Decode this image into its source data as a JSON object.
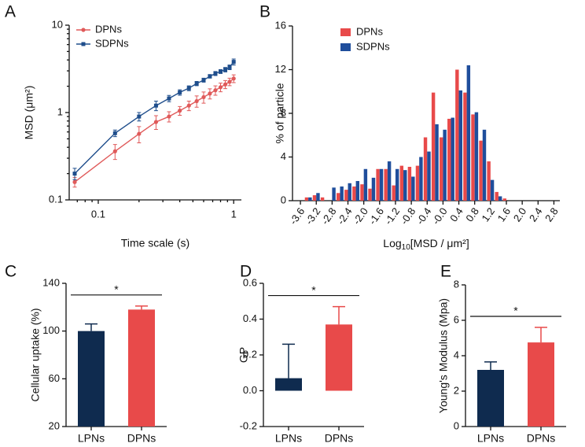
{
  "chart_data": [
    {
      "type": "line",
      "panel": "A",
      "x_label": "Time scale (s)",
      "y_label": "MSD (μm²)",
      "xscale": "log",
      "yscale": "log",
      "x": [
        0.067,
        0.133,
        0.2,
        0.267,
        0.333,
        0.4,
        0.467,
        0.533,
        0.6,
        0.667,
        0.733,
        0.8,
        0.867,
        0.933,
        1.0
      ],
      "series": [
        {
          "name": "DPNs",
          "color": "#e05a5a",
          "marker": "circle",
          "values": [
            0.16,
            0.36,
            0.57,
            0.78,
            0.9,
            1.05,
            1.2,
            1.35,
            1.5,
            1.65,
            1.8,
            1.95,
            2.1,
            2.25,
            2.45
          ],
          "errors": [
            0.02,
            0.07,
            0.12,
            0.14,
            0.12,
            0.12,
            0.15,
            0.2,
            0.22,
            0.22,
            0.22,
            0.22,
            0.22,
            0.22,
            0.25
          ]
        },
        {
          "name": "SDPNs",
          "color": "#1f4e8c",
          "marker": "square",
          "values": [
            0.2,
            0.58,
            0.9,
            1.2,
            1.45,
            1.7,
            1.9,
            2.15,
            2.35,
            2.6,
            2.8,
            2.95,
            3.1,
            3.3,
            3.8
          ],
          "errors": [
            0.03,
            0.05,
            0.1,
            0.15,
            0.12,
            0.12,
            0.12,
            0.12,
            0.12,
            0.12,
            0.15,
            0.15,
            0.18,
            0.2,
            0.3
          ]
        }
      ],
      "xlim": [
        0.061,
        1.14
      ],
      "xticks": [
        0.1,
        1
      ],
      "ylim": [
        0.1,
        10
      ],
      "yticks": [
        0.1,
        1,
        10
      ]
    },
    {
      "type": "bar",
      "panel": "B",
      "x_label": {
        "text": "Log",
        "subscript": "10",
        "rest": "[MSD / μm²]"
      },
      "y_label": "% of particle",
      "x": [
        -3.6,
        -3.4,
        -3.2,
        -3.0,
        -2.8,
        -2.6,
        -2.4,
        -2.2,
        -2.0,
        -1.8,
        -1.6,
        -1.4,
        -1.2,
        -1.0,
        -0.8,
        -0.6,
        -0.4,
        -0.2,
        0.0,
        0.2,
        0.4,
        0.6,
        0.8,
        1.0,
        1.2,
        1.4,
        1.6,
        1.8,
        2.0,
        2.2,
        2.4,
        2.6,
        2.8
      ],
      "series": [
        {
          "name": "DPNs",
          "color": "#e84a4a",
          "values": [
            0,
            0.3,
            0.5,
            0.3,
            0,
            0.7,
            1.0,
            1.3,
            1.5,
            1.1,
            2.9,
            2.9,
            1.4,
            3.2,
            3.1,
            3.2,
            5.8,
            9.9,
            5.8,
            7.5,
            12.0,
            9.9,
            7.9,
            5.5,
            3.6,
            0.8,
            0.2,
            0,
            0,
            0,
            0,
            0,
            0
          ]
        },
        {
          "name": "SDPNs",
          "color": "#1f4e9c",
          "values": [
            0,
            0.3,
            0.7,
            0,
            1.2,
            1.3,
            1.6,
            1.8,
            2.9,
            2.1,
            2.9,
            3.6,
            2.9,
            2.8,
            2.2,
            4.0,
            4.5,
            7.0,
            6.5,
            7.6,
            10.1,
            12.4,
            8.1,
            6.5,
            1.9,
            0.4,
            0,
            0,
            0,
            0,
            0,
            0,
            0
          ]
        }
      ],
      "xlim": [
        -3.8,
        2.95
      ],
      "xticks": [
        -3.6,
        -3.2,
        -2.8,
        -2.4,
        {
          "value": -2,
          "label": "-2.0"
        },
        -1.6,
        -1.2,
        -0.8,
        -0.4,
        {
          "value": 0,
          "label": "-0.0"
        },
        0.4,
        0.8,
        1.2,
        1.6,
        {
          "value": 2,
          "label": "2.0"
        },
        2.4,
        2.8
      ],
      "ylim": [
        0,
        16
      ],
      "yticks": [
        0,
        4,
        8,
        12,
        16
      ]
    },
    {
      "type": "bar",
      "panel": "C",
      "y_label": "Cellular uptake (%)",
      "categories": [
        "LPNs",
        "DPNs"
      ],
      "values": [
        100,
        118
      ],
      "errors": [
        6,
        3
      ],
      "colors": [
        "#0f2b4f",
        "#e84a4a"
      ],
      "significance": "*",
      "ylim": [
        20,
        140
      ],
      "yticks": [
        20,
        60,
        100,
        140
      ]
    },
    {
      "type": "bar",
      "panel": "D",
      "y_label": "GP",
      "categories": [
        "LPNs",
        "DPNs"
      ],
      "values": [
        0.07,
        0.37
      ],
      "errors": [
        0.19,
        0.1
      ],
      "colors": [
        "#0f2b4f",
        "#e84a4a"
      ],
      "significance": "*",
      "ylim": [
        -0.2,
        0.6
      ],
      "yticks": [
        -0.2,
        {
          "value": 0,
          "label": "0.0"
        },
        0.2,
        0.4,
        0.6
      ]
    },
    {
      "type": "bar",
      "panel": "E",
      "y_label": "Young's Modulus (Mpa)",
      "categories": [
        "LPNs",
        "DPNs"
      ],
      "values": [
        3.2,
        4.75
      ],
      "errors": [
        0.45,
        0.85
      ],
      "colors": [
        "#0f2b4f",
        "#e84a4a"
      ],
      "significance": "*",
      "ylim": [
        0,
        8
      ],
      "yticks": [
        0,
        2,
        4,
        6,
        8
      ]
    }
  ]
}
